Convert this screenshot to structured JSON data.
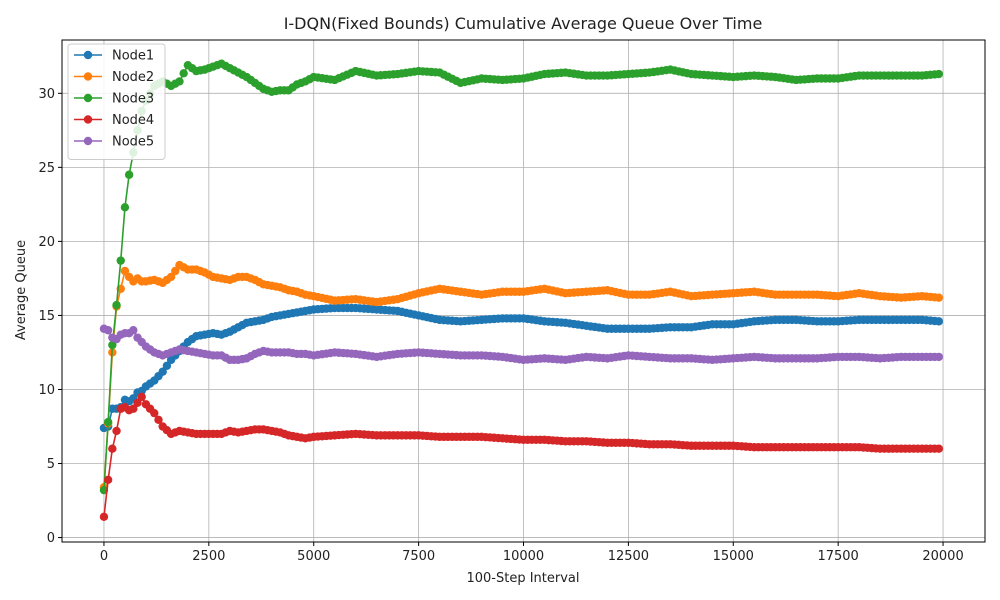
{
  "chart_data": {
    "type": "line",
    "title": "I-DQN(Fixed Bounds) Cumulative Average Queue Over Time",
    "xlabel": "100-Step Interval",
    "ylabel": "Average Queue",
    "xlim": [
      -1000,
      21000
    ],
    "ylim": [
      -0.3,
      33.6
    ],
    "x_ticks": [
      0,
      2500,
      5000,
      7500,
      10000,
      12500,
      15000,
      17500,
      20000
    ],
    "x_tick_labels": [
      "0",
      "2500",
      "5000",
      "7500",
      "10000",
      "12500",
      "15000",
      "17500",
      "20000"
    ],
    "y_ticks": [
      0,
      5,
      10,
      15,
      20,
      25,
      30
    ],
    "y_tick_labels": [
      "0",
      "5",
      "10",
      "15",
      "20",
      "25",
      "30"
    ],
    "grid": true,
    "legend_position": "top-left",
    "x": [
      0,
      100,
      200,
      300,
      400,
      500,
      600,
      700,
      800,
      900,
      1000,
      1200,
      1400,
      1600,
      1800,
      2000,
      2200,
      2400,
      2600,
      2800,
      3000,
      3200,
      3400,
      3600,
      3800,
      4000,
      4200,
      4400,
      4600,
      4800,
      5000,
      5500,
      6000,
      6500,
      7000,
      7500,
      8000,
      8500,
      9000,
      9500,
      10000,
      10500,
      11000,
      11500,
      12000,
      12500,
      13000,
      13500,
      14000,
      14500,
      15000,
      15500,
      16000,
      16500,
      17000,
      17500,
      18000,
      18500,
      19000,
      19500,
      19900
    ],
    "series": [
      {
        "name": "Node1",
        "color": "#1f77b4",
        "values": [
          7.4,
          7.5,
          8.7,
          8.7,
          8.8,
          9.3,
          9.2,
          9.4,
          9.8,
          9.9,
          10.2,
          10.6,
          11.2,
          12.0,
          12.6,
          13.2,
          13.6,
          13.7,
          13.8,
          13.7,
          13.9,
          14.2,
          14.5,
          14.6,
          14.7,
          14.9,
          15.0,
          15.1,
          15.2,
          15.3,
          15.4,
          15.5,
          15.5,
          15.4,
          15.3,
          15.0,
          14.7,
          14.6,
          14.7,
          14.8,
          14.8,
          14.6,
          14.5,
          14.3,
          14.1,
          14.1,
          14.1,
          14.2,
          14.2,
          14.4,
          14.4,
          14.6,
          14.7,
          14.7,
          14.6,
          14.6,
          14.7,
          14.7,
          14.7,
          14.7,
          14.6
        ]
      },
      {
        "name": "Node2",
        "color": "#ff7f0e",
        "values": [
          3.4,
          7.7,
          12.5,
          15.6,
          16.8,
          18.0,
          17.6,
          17.3,
          17.5,
          17.3,
          17.3,
          17.4,
          17.2,
          17.6,
          18.4,
          18.1,
          18.1,
          17.9,
          17.6,
          17.5,
          17.4,
          17.6,
          17.6,
          17.4,
          17.1,
          17.0,
          16.9,
          16.7,
          16.6,
          16.4,
          16.3,
          16.0,
          16.1,
          15.9,
          16.1,
          16.5,
          16.8,
          16.6,
          16.4,
          16.6,
          16.6,
          16.8,
          16.5,
          16.6,
          16.7,
          16.4,
          16.4,
          16.6,
          16.3,
          16.4,
          16.5,
          16.6,
          16.4,
          16.4,
          16.4,
          16.3,
          16.5,
          16.3,
          16.2,
          16.3,
          16.2
        ]
      },
      {
        "name": "Node3",
        "color": "#2ca02c",
        "values": [
          3.2,
          7.8,
          13.0,
          15.7,
          18.7,
          22.3,
          24.5,
          26.0,
          27.5,
          28.8,
          29.5,
          30.5,
          30.8,
          30.5,
          30.8,
          31.9,
          31.5,
          31.6,
          31.8,
          32.0,
          31.7,
          31.4,
          31.1,
          30.7,
          30.3,
          30.1,
          30.2,
          30.2,
          30.6,
          30.8,
          31.1,
          30.9,
          31.5,
          31.2,
          31.3,
          31.5,
          31.4,
          30.7,
          31.0,
          30.9,
          31.0,
          31.3,
          31.4,
          31.2,
          31.2,
          31.3,
          31.4,
          31.6,
          31.3,
          31.2,
          31.1,
          31.2,
          31.1,
          30.9,
          31.0,
          31.0,
          31.2,
          31.2,
          31.2,
          31.2,
          31.3
        ]
      },
      {
        "name": "Node4",
        "color": "#d62728",
        "values": [
          1.4,
          3.9,
          6.0,
          7.2,
          8.7,
          8.8,
          8.6,
          8.7,
          9.1,
          9.5,
          9.0,
          8.4,
          7.5,
          7.0,
          7.2,
          7.1,
          7.0,
          7.0,
          7.0,
          7.0,
          7.2,
          7.1,
          7.2,
          7.3,
          7.3,
          7.2,
          7.1,
          6.9,
          6.8,
          6.7,
          6.8,
          6.9,
          7.0,
          6.9,
          6.9,
          6.9,
          6.8,
          6.8,
          6.8,
          6.7,
          6.6,
          6.6,
          6.5,
          6.5,
          6.4,
          6.4,
          6.3,
          6.3,
          6.2,
          6.2,
          6.2,
          6.1,
          6.1,
          6.1,
          6.1,
          6.1,
          6.1,
          6.0,
          6.0,
          6.0,
          6.0
        ]
      },
      {
        "name": "Node5",
        "color": "#9467bd",
        "values": [
          14.1,
          14.0,
          13.5,
          13.4,
          13.7,
          13.8,
          13.8,
          14.0,
          13.5,
          13.2,
          12.9,
          12.5,
          12.3,
          12.5,
          12.7,
          12.6,
          12.5,
          12.4,
          12.3,
          12.3,
          12.0,
          12.0,
          12.1,
          12.4,
          12.6,
          12.5,
          12.5,
          12.5,
          12.4,
          12.4,
          12.3,
          12.5,
          12.4,
          12.2,
          12.4,
          12.5,
          12.4,
          12.3,
          12.3,
          12.2,
          12.0,
          12.1,
          12.0,
          12.2,
          12.1,
          12.3,
          12.2,
          12.1,
          12.1,
          12.0,
          12.1,
          12.2,
          12.1,
          12.1,
          12.1,
          12.2,
          12.2,
          12.1,
          12.2,
          12.2,
          12.2
        ]
      }
    ]
  }
}
